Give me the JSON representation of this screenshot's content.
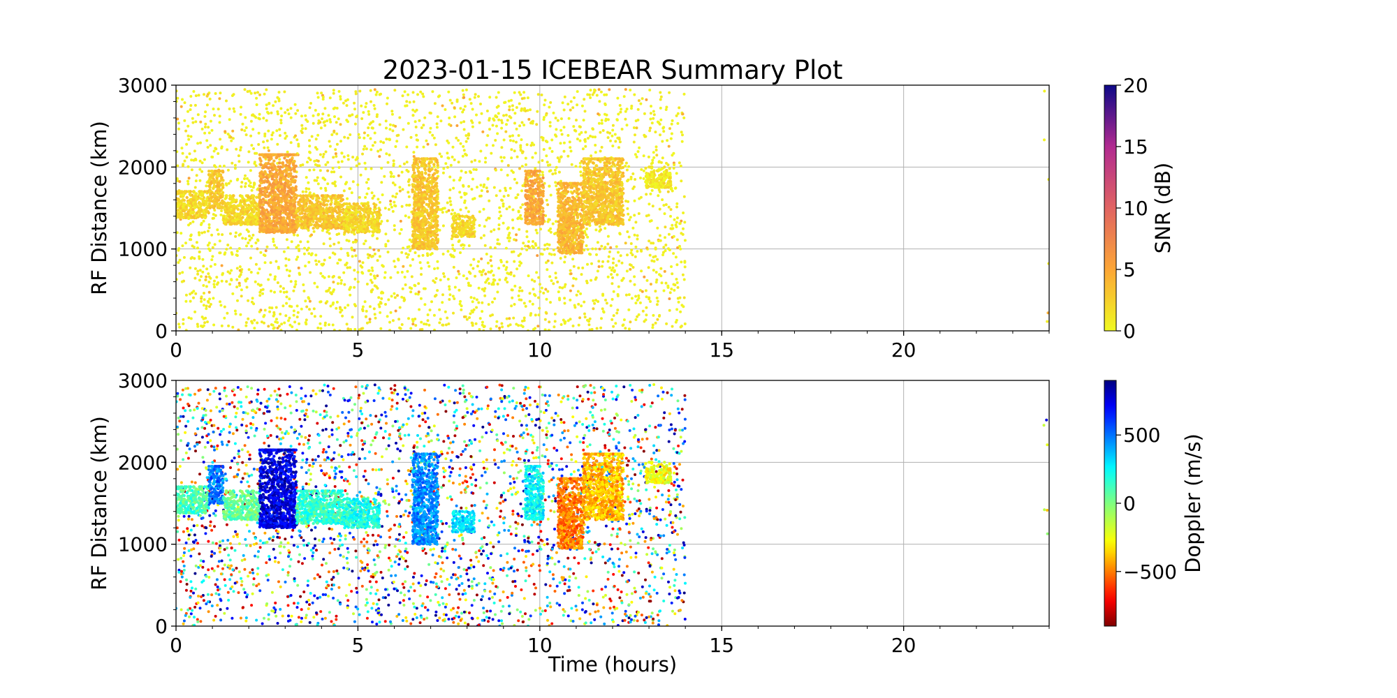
{
  "chart_data": [
    {
      "type": "scatter",
      "title": "2023-01-15 ICEBEAR Summary Plot",
      "xlabel": "",
      "ylabel": "RF Distance (km)",
      "xlim": [
        0,
        24
      ],
      "ylim": [
        0,
        3000
      ],
      "x_ticks": [
        "0",
        "5",
        "10",
        "15",
        "20"
      ],
      "y_ticks": [
        "0",
        "1000",
        "2000",
        "3000"
      ],
      "grid": true,
      "colorbar": {
        "label": "SNR (dB)",
        "range": [
          0,
          20
        ],
        "ticks": [
          "0",
          "5",
          "10",
          "15",
          "20"
        ],
        "colormap": "plasma_r"
      },
      "echo_regions": [
        {
          "t0": 0.0,
          "t1": 0.9,
          "y0": 1380,
          "y1": 1700,
          "value": 2
        },
        {
          "t0": 0.9,
          "t1": 1.3,
          "y0": 1500,
          "y1": 1950,
          "value": 3
        },
        {
          "t0": 1.3,
          "t1": 2.3,
          "y0": 1300,
          "y1": 1650,
          "value": 2
        },
        {
          "t0": 2.3,
          "t1": 3.3,
          "y0": 1200,
          "y1": 2150,
          "value": 5
        },
        {
          "t0": 3.3,
          "t1": 4.6,
          "y0": 1250,
          "y1": 1650,
          "value": 3
        },
        {
          "t0": 4.6,
          "t1": 5.6,
          "y0": 1200,
          "y1": 1550,
          "value": 2
        },
        {
          "t0": 6.5,
          "t1": 7.2,
          "y0": 1000,
          "y1": 2100,
          "value": 3
        },
        {
          "t0": 7.6,
          "t1": 8.2,
          "y0": 1150,
          "y1": 1400,
          "value": 2
        },
        {
          "t0": 9.6,
          "t1": 10.1,
          "y0": 1300,
          "y1": 1950,
          "value": 5
        },
        {
          "t0": 10.5,
          "t1": 11.2,
          "y0": 950,
          "y1": 1800,
          "value": 4
        },
        {
          "t0": 11.2,
          "t1": 12.3,
          "y0": 1300,
          "y1": 2100,
          "value": 3
        },
        {
          "t0": 12.9,
          "t1": 13.6,
          "y0": 1750,
          "y1": 2000,
          "value": 1
        }
      ],
      "noise_windows": [
        {
          "t0": 0.0,
          "t1": 14.0,
          "density": 1.0
        },
        {
          "t0": 23.85,
          "t1": 24.0,
          "density": 0.2
        }
      ]
    },
    {
      "type": "scatter",
      "title": "",
      "xlabel": "Time (hours)",
      "ylabel": "RF Distance (km)",
      "xlim": [
        0,
        24
      ],
      "ylim": [
        0,
        3000
      ],
      "x_ticks": [
        "0",
        "5",
        "10",
        "15",
        "20"
      ],
      "y_ticks": [
        "0",
        "1000",
        "2000",
        "3000"
      ],
      "grid": true,
      "colorbar": {
        "label": "Doppler (m/s)",
        "range": [
          -900,
          900
        ],
        "ticks": [
          "−500",
          "0",
          "500"
        ],
        "tick_values": [
          -500,
          0,
          500
        ],
        "colormap": "jet_r"
      },
      "echo_regions": [
        {
          "t0": 0.0,
          "t1": 0.9,
          "y0": 1380,
          "y1": 1700,
          "value": 100
        },
        {
          "t0": 0.9,
          "t1": 1.3,
          "y0": 1500,
          "y1": 1950,
          "value": 500
        },
        {
          "t0": 1.3,
          "t1": 2.3,
          "y0": 1300,
          "y1": 1650,
          "value": 50
        },
        {
          "t0": 2.3,
          "t1": 3.3,
          "y0": 1200,
          "y1": 2150,
          "value": 750
        },
        {
          "t0": 3.3,
          "t1": 4.6,
          "y0": 1250,
          "y1": 1650,
          "value": 150
        },
        {
          "t0": 4.6,
          "t1": 5.6,
          "y0": 1200,
          "y1": 1550,
          "value": 200
        },
        {
          "t0": 6.5,
          "t1": 7.2,
          "y0": 1000,
          "y1": 2100,
          "value": 450
        },
        {
          "t0": 7.6,
          "t1": 8.2,
          "y0": 1150,
          "y1": 1400,
          "value": 300
        },
        {
          "t0": 9.6,
          "t1": 10.1,
          "y0": 1300,
          "y1": 1950,
          "value": 250
        },
        {
          "t0": 10.5,
          "t1": 11.2,
          "y0": 950,
          "y1": 1800,
          "value": -500
        },
        {
          "t0": 11.2,
          "t1": 12.3,
          "y0": 1300,
          "y1": 2100,
          "value": -400
        },
        {
          "t0": 12.9,
          "t1": 13.6,
          "y0": 1750,
          "y1": 2000,
          "value": -250
        }
      ],
      "noise_windows": [
        {
          "t0": 0.0,
          "t1": 14.0,
          "density": 1.0
        },
        {
          "t0": 23.85,
          "t1": 24.0,
          "density": 0.2
        }
      ]
    }
  ],
  "colors": {
    "grid": "#b0b0b0",
    "axis": "#000000",
    "background": "#ffffff"
  }
}
